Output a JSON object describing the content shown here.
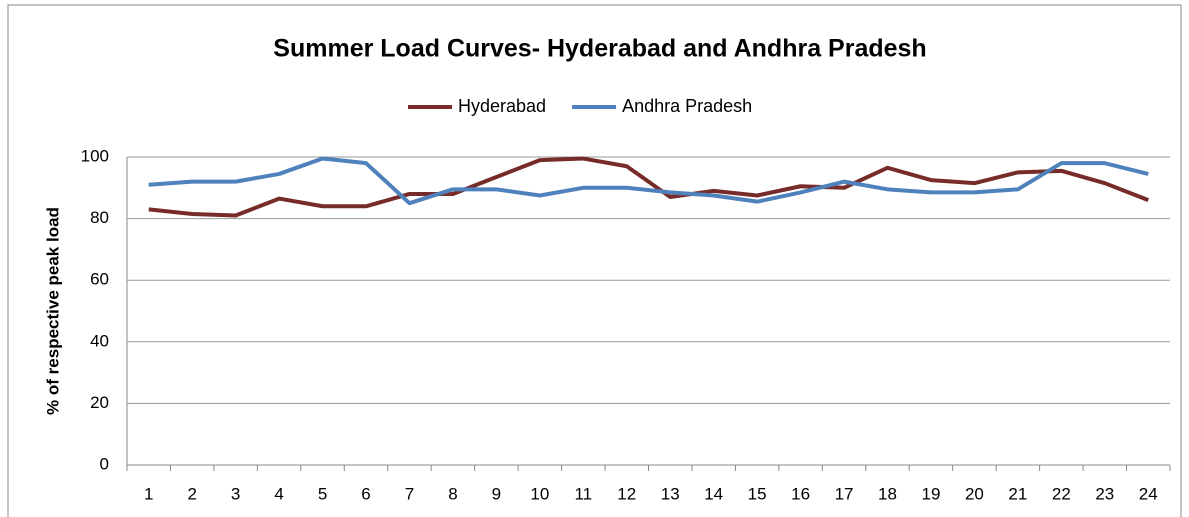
{
  "chart_data": {
    "type": "line",
    "title": "Summer Load Curves- Hyderabad and Andhra Pradesh",
    "y_label": "% of respective peak load",
    "categories": [
      "1",
      "2",
      "3",
      "4",
      "5",
      "6",
      "7",
      "8",
      "9",
      "10",
      "11",
      "12",
      "13",
      "14",
      "15",
      "16",
      "17",
      "18",
      "19",
      "20",
      "21",
      "22",
      "23",
      "24"
    ],
    "series": [
      {
        "name": "Hyderabad",
        "color": "#772c2a",
        "values": [
          83,
          81.5,
          81,
          86.5,
          84,
          84,
          88,
          88,
          93.5,
          99,
          99.5,
          97,
          87,
          89,
          87.5,
          90.5,
          90,
          96.5,
          92.5,
          91.5,
          95,
          95.5,
          91.5,
          86
        ]
      },
      {
        "name": "Andhra Pradesh",
        "color": "#4f81bd",
        "values": [
          91,
          92,
          92,
          94.5,
          99.5,
          98,
          85,
          89.5,
          89.5,
          87.5,
          90,
          90,
          88.5,
          87.5,
          85.5,
          88.5,
          92,
          89.5,
          88.5,
          88.5,
          89.5,
          98,
          98,
          94.5
        ]
      }
    ],
    "ylim": [
      0,
      100
    ],
    "yticks": [
      0,
      20,
      40,
      60,
      80,
      100
    ],
    "grid": true,
    "legend": "top"
  }
}
